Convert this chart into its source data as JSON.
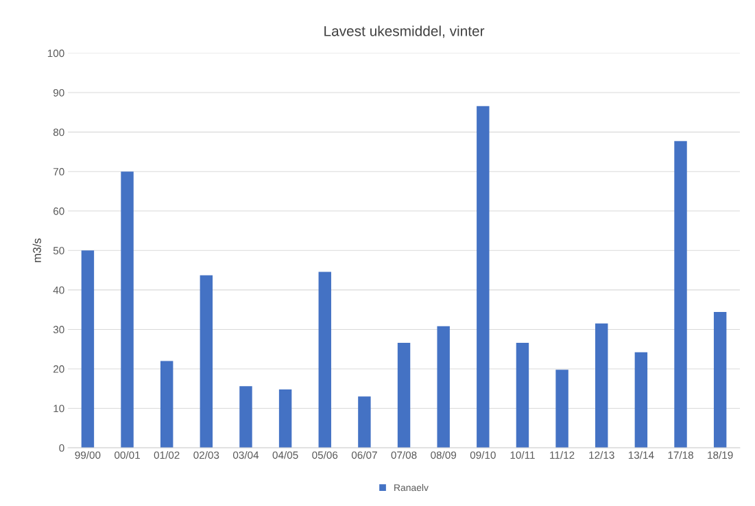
{
  "chart_data": {
    "type": "bar",
    "title": "Lavest ukesmiddel, vinter",
    "ylabel": "m3/s",
    "categories": [
      "99/00",
      "00/01",
      "01/02",
      "02/03",
      "03/04",
      "04/05",
      "05/06",
      "06/07",
      "07/08",
      "08/09",
      "09/10",
      "10/11",
      "11/12",
      "12/13",
      "13/14",
      "17/18",
      "18/19"
    ],
    "series": [
      {
        "name": "Ranaelv",
        "color": "#4472c4",
        "values": [
          50,
          70,
          22,
          43.7,
          15.6,
          14.8,
          44.6,
          13.0,
          26.6,
          30.8,
          86.6,
          26.6,
          19.8,
          31.5,
          24.2,
          77.7,
          34.4
        ]
      }
    ],
    "ylim": [
      0,
      100
    ],
    "yticks": [
      0,
      10,
      20,
      30,
      40,
      50,
      60,
      70,
      80,
      90,
      100
    ],
    "grid": "y",
    "legend": "bottom"
  }
}
